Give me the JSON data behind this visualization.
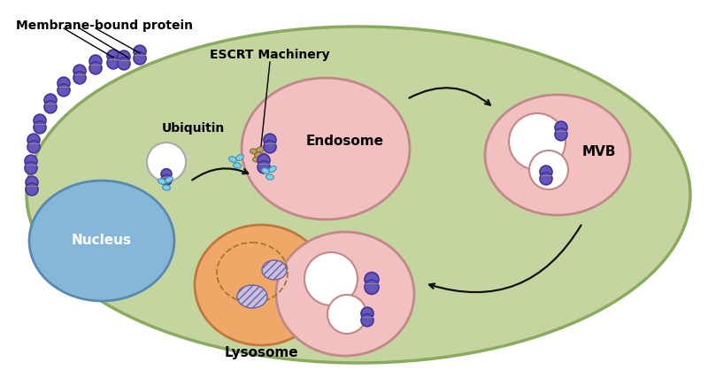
{
  "bg_color": "#ffffff",
  "cell_color": "#c5d5a0",
  "cell_border": "#8aaa60",
  "nucleus_color": "#85b8d8",
  "nucleus_border": "#5a88b0",
  "endosome_color": "#f2c0c0",
  "endosome_border": "#c08888",
  "mvb_outer_color": "#f2c0c0",
  "mvb_outer_border": "#c08888",
  "lysosome_color": "#f0a868",
  "lysosome_border": "#c07840",
  "vesicle_color": "#f2c0c0",
  "vesicle_border": "#c08888",
  "white_color": "#ffffff",
  "protein_color": "#6655bb",
  "protein_border": "#443399",
  "protein_line": "#888888",
  "ubiquitin_color": "#80d0e8",
  "ubiquitin_border": "#4090b0",
  "escrt_color": "#b8a060",
  "escrt_border": "#806030",
  "text_color": "#000000",
  "arrow_color": "#111111",
  "labels": {
    "membrane_protein": "Membrane-bound protein",
    "escrt": "ESCRT Machinery",
    "ubiquitin": "Ubiquitin",
    "endosome": "Endosome",
    "mvb": "MVB",
    "nucleus": "Nucleus",
    "lysosome": "Lysosome"
  }
}
